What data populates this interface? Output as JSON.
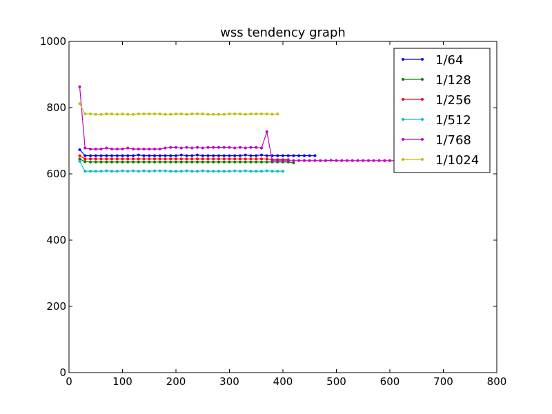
{
  "chart_data": {
    "type": "line",
    "title": "wss tendency graph",
    "xlabel": "",
    "ylabel": "",
    "xlim": [
      0,
      800
    ],
    "ylim": [
      0,
      1000
    ],
    "xticks": [
      0,
      100,
      200,
      300,
      400,
      500,
      600,
      700,
      800
    ],
    "yticks": [
      0,
      200,
      400,
      600,
      800,
      1000
    ],
    "grid": false,
    "legend_position": "top-right",
    "series": [
      {
        "name": "1/64",
        "color": "#0000ff",
        "x": [
          20,
          30,
          40,
          50,
          60,
          70,
          80,
          90,
          100,
          110,
          120,
          130,
          140,
          150,
          160,
          170,
          180,
          190,
          200,
          210,
          220,
          230,
          240,
          250,
          260,
          270,
          280,
          290,
          300,
          310,
          320,
          330,
          340,
          350,
          360,
          370,
          380,
          390,
          400,
          410,
          420,
          430,
          440,
          450,
          460
        ],
        "y": [
          673,
          655,
          655,
          655,
          655,
          655,
          655,
          655,
          655,
          655,
          655,
          657,
          655,
          655,
          655,
          655,
          655,
          655,
          655,
          657,
          655,
          655,
          657,
          655,
          655,
          655,
          655,
          655,
          655,
          655,
          655,
          657,
          655,
          655,
          657,
          655,
          655,
          655,
          655,
          655,
          655,
          655,
          655,
          655,
          655
        ]
      },
      {
        "name": "1/128",
        "color": "#008000",
        "x": [
          20,
          30,
          40,
          50,
          60,
          70,
          80,
          90,
          100,
          110,
          120,
          130,
          140,
          150,
          160,
          170,
          180,
          190,
          200,
          210,
          220,
          230,
          240,
          250,
          260,
          270,
          280,
          290,
          300,
          310,
          320,
          330,
          340,
          350,
          360,
          370,
          380,
          390,
          400,
          410,
          420
        ],
        "y": [
          645,
          637,
          636,
          636,
          636,
          636,
          636,
          636,
          636,
          636,
          636,
          636,
          636,
          636,
          636,
          636,
          636,
          636,
          636,
          636,
          636,
          636,
          636,
          636,
          636,
          636,
          636,
          636,
          636,
          636,
          636,
          636,
          636,
          636,
          636,
          636,
          636,
          636,
          636,
          636,
          633
        ]
      },
      {
        "name": "1/256",
        "color": "#ff0000",
        "x": [
          20,
          30,
          40,
          50,
          60,
          70,
          80,
          90,
          100,
          110,
          120,
          130,
          140,
          150,
          160,
          170,
          180,
          190,
          200,
          210,
          220,
          230,
          240,
          250,
          260,
          270,
          280,
          290,
          300,
          310,
          320,
          330,
          340,
          350,
          360,
          370,
          380,
          390,
          400,
          410
        ],
        "y": [
          655,
          645,
          645,
          645,
          645,
          645,
          645,
          645,
          645,
          645,
          645,
          645,
          645,
          645,
          645,
          645,
          645,
          645,
          645,
          645,
          645,
          645,
          645,
          645,
          645,
          645,
          645,
          645,
          645,
          645,
          645,
          645,
          645,
          645,
          645,
          645,
          643,
          643,
          643,
          643
        ]
      },
      {
        "name": "1/512",
        "color": "#00bfbf",
        "x": [
          20,
          30,
          40,
          50,
          60,
          70,
          80,
          90,
          100,
          110,
          120,
          130,
          140,
          150,
          160,
          170,
          180,
          190,
          200,
          210,
          220,
          230,
          240,
          250,
          260,
          270,
          280,
          290,
          300,
          310,
          320,
          330,
          340,
          350,
          360,
          370,
          380,
          390,
          400
        ],
        "y": [
          638,
          608,
          608,
          608,
          608,
          609,
          608,
          608,
          609,
          608,
          609,
          608,
          609,
          608,
          609,
          609,
          609,
          608,
          608,
          608,
          609,
          608,
          608,
          609,
          608,
          608,
          608,
          608,
          608,
          609,
          608,
          609,
          608,
          608,
          608,
          609,
          608,
          608,
          608
        ]
      },
      {
        "name": "1/768",
        "color": "#bf00bf",
        "x": [
          20,
          30,
          40,
          50,
          60,
          70,
          80,
          90,
          100,
          110,
          120,
          130,
          140,
          150,
          160,
          170,
          180,
          190,
          200,
          210,
          220,
          230,
          240,
          250,
          260,
          270,
          280,
          290,
          300,
          310,
          320,
          330,
          340,
          350,
          360,
          370,
          380,
          390,
          400,
          410,
          420,
          430,
          440,
          450,
          460,
          470,
          480,
          490,
          500,
          510,
          520,
          530,
          540,
          550,
          560,
          570,
          580,
          590,
          600,
          610
        ],
        "y": [
          863,
          678,
          675,
          675,
          675,
          678,
          675,
          675,
          675,
          678,
          675,
          675,
          675,
          675,
          675,
          675,
          678,
          680,
          680,
          678,
          680,
          678,
          680,
          678,
          680,
          680,
          680,
          680,
          680,
          678,
          680,
          678,
          680,
          680,
          678,
          727,
          640,
          640,
          640,
          640,
          640,
          640,
          640,
          640,
          640,
          640,
          640,
          641,
          640,
          640,
          640,
          640,
          640,
          640,
          640,
          640,
          640,
          640,
          640,
          640
        ]
      },
      {
        "name": "1/1024",
        "color": "#bfbf00",
        "x": [
          20,
          30,
          40,
          50,
          60,
          70,
          80,
          90,
          100,
          110,
          120,
          130,
          140,
          150,
          160,
          170,
          180,
          190,
          200,
          210,
          220,
          230,
          240,
          250,
          260,
          270,
          280,
          290,
          300,
          310,
          320,
          330,
          340,
          350,
          360,
          370,
          380,
          390
        ],
        "y": [
          812,
          781,
          781,
          780,
          780,
          781,
          781,
          780,
          781,
          780,
          780,
          781,
          781,
          781,
          781,
          781,
          780,
          780,
          781,
          781,
          780,
          781,
          781,
          781,
          780,
          780,
          780,
          780,
          781,
          781,
          781,
          780,
          781,
          781,
          781,
          781,
          780,
          781
        ]
      }
    ]
  }
}
